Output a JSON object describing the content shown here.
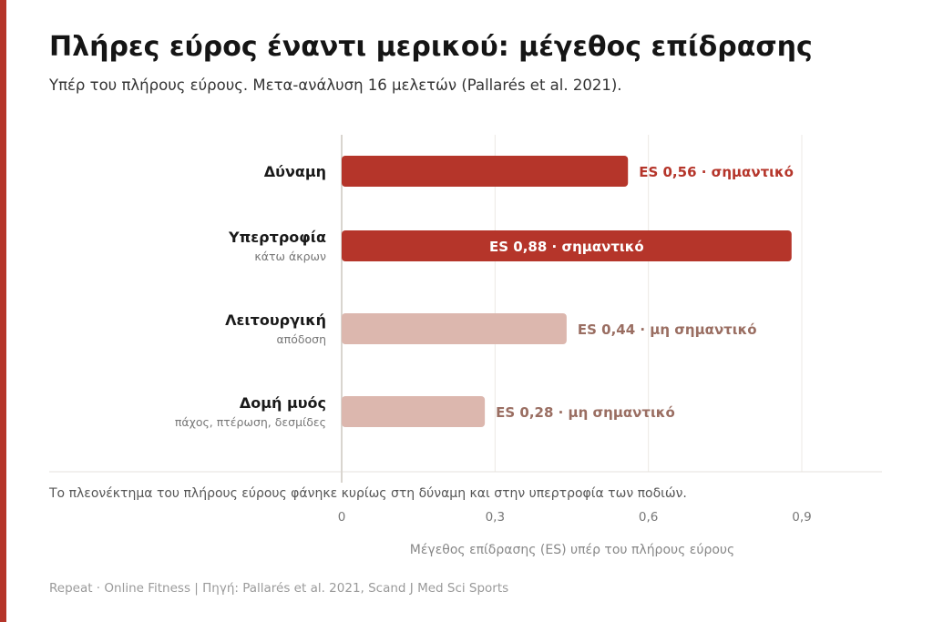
{
  "title": "Πλήρες εύρος έναντι μερικού: μέγεθος επίδρασης",
  "subtitle": "Υπέρ του πλήρους εύρους. Μετα-ανάλυση 16 μελετών (Pallarés et al. 2021).",
  "footer": "Repeat · Online Fitness | Πηγή: Pallarés et al. 2021, Scand J Med Sci Sports",
  "colors": {
    "accent": "#b5352a",
    "significant": "#b5352a",
    "not_significant": "#dcb7ae",
    "not_significant_label": "#9a6e62"
  },
  "chart_data": {
    "type": "bar",
    "orientation": "horizontal",
    "categories": [
      "Δύναμη",
      "Υπερτροφία",
      "Λειτουργική",
      "Δομή μυός"
    ],
    "category_sublabels": [
      "",
      "κάτω άκρων",
      "απόδοση",
      "πάχος, πτέρωση, δεσμίδες"
    ],
    "values": [
      0.56,
      0.88,
      0.44,
      0.28
    ],
    "significant": [
      true,
      true,
      false,
      false
    ],
    "data_labels": [
      "ES 0,56 · σημαντικό",
      "ES 0,88 · σημαντικό",
      "ES 0,44 · μη σημαντικό",
      "ES 0,28 · μη σημαντικό"
    ],
    "xlabel": "Μέγεθος επίδρασης (ES) υπέρ του πλήρους εύρους",
    "xlim": [
      0,
      0.9
    ],
    "xticks": [
      0,
      0.3,
      0.6,
      0.9
    ],
    "xtick_labels": [
      "0",
      "0,3",
      "0,6",
      "0,9"
    ],
    "grid": true,
    "annotation": "Το πλεονέκτημα του πλήρους εύρους φάνηκε κυρίως στη δύναμη και στην υπερτροφία των ποδιών."
  }
}
